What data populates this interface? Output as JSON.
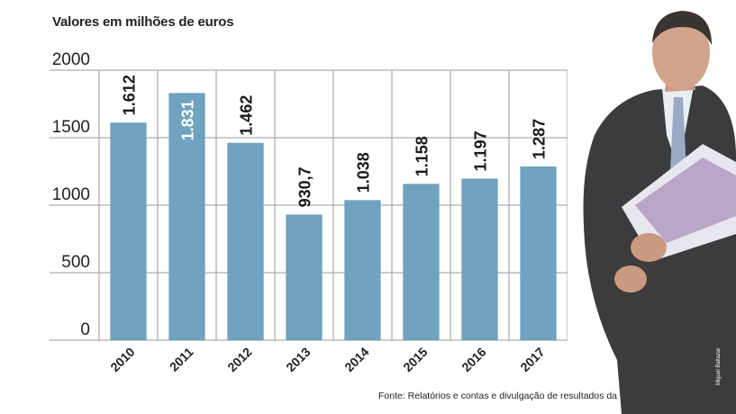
{
  "chart_data": {
    "type": "bar",
    "title": "Valores em milhões de euros",
    "categories": [
      "2010",
      "2011",
      "2012",
      "2013",
      "2014",
      "2015",
      "2016",
      "2017"
    ],
    "values": [
      1612,
      1831,
      1462,
      930.7,
      1038,
      1158,
      1197,
      1287
    ],
    "value_labels": [
      "1.612",
      "1.831",
      "1.462",
      "930,7",
      "1.038",
      "1.158",
      "1.197",
      "1.287"
    ],
    "yticks": [
      0,
      500,
      1000,
      1500,
      2000
    ],
    "ylim": [
      0,
      2000
    ],
    "grid": true,
    "colors": {
      "bar": "#6fa3bf",
      "grid": "#9a9a9a",
      "label_inside": "#ffffff",
      "label_outside": "#1a1a1a"
    }
  },
  "source": "Fonte: Relatórios e contas e divulgação de resultados da CGD",
  "photo_credit": "Miguel Baltazar"
}
